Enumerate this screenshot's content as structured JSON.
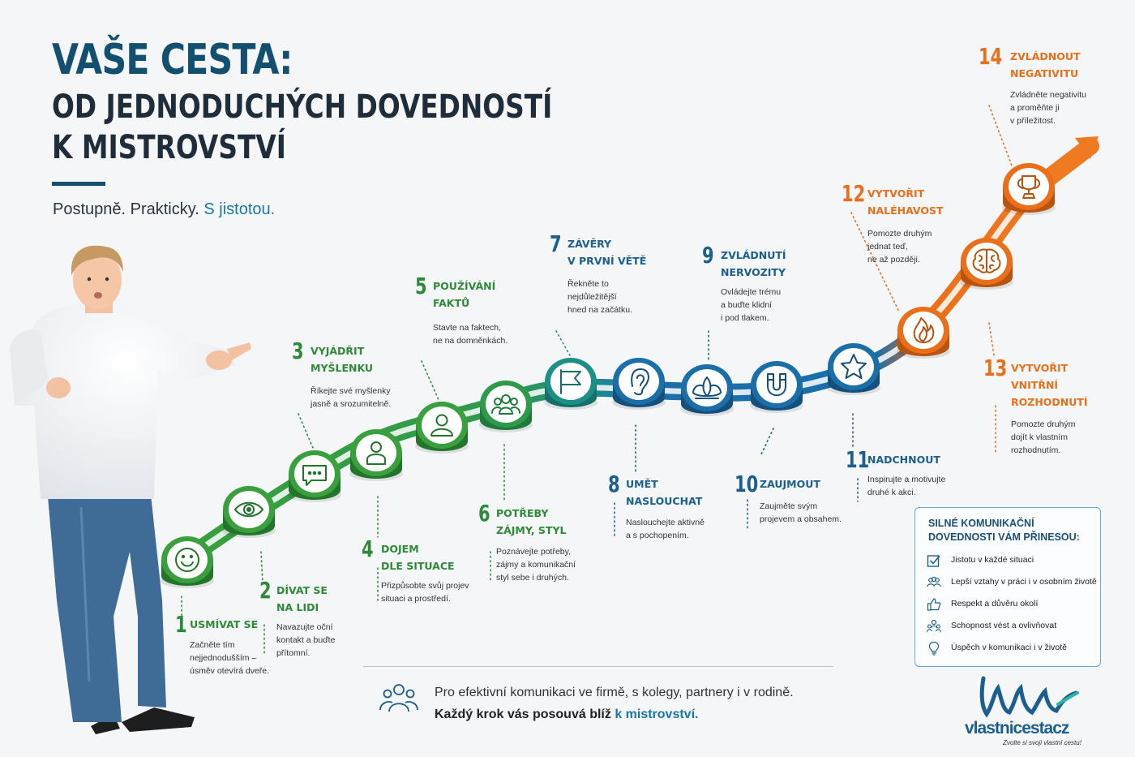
{
  "title": {
    "line1": "VAŠE CESTA:",
    "line2": "OD JEDNODUCHÝCH DOVEDNOSTÍ",
    "line3": "K MISTROVSTVÍ"
  },
  "tagline": {
    "plain": "Postupně. Prakticky.",
    "accent": "S jistotou."
  },
  "colors": {
    "green": "#2f8a38",
    "teal": "#1e8f86",
    "blue": "#1b5f8e",
    "orange": "#ea6f1a",
    "navy": "#13506f"
  },
  "steps": [
    {
      "num": "1",
      "title": [
        "USMÍVAT SE"
      ],
      "desc": [
        "Začněte tím",
        "nejjednodušším –",
        "úsměv otevírá dveře."
      ],
      "icon": "smile-icon"
    },
    {
      "num": "2",
      "title": [
        "DÍVAT SE",
        "NA LIDI"
      ],
      "desc": [
        "Navazujte oční",
        "kontakt a buďte",
        "přítomní."
      ],
      "icon": "eye-icon"
    },
    {
      "num": "3",
      "title": [
        "VYJÁDŘIT",
        "MYŠLENKU"
      ],
      "desc": [
        "Říkejte své myšlenky",
        "jasně a srozumitelně."
      ],
      "icon": "chat-bubble-icon"
    },
    {
      "num": "4",
      "title": [
        "DOJEM",
        "DLE SITUACE"
      ],
      "desc": [
        "Přizpůsobte svůj projev",
        "situaci a prostředí."
      ],
      "icon": "person-icon"
    },
    {
      "num": "5",
      "title": [
        "POUŽÍVÁNÍ",
        "FAKTŮ"
      ],
      "desc": [
        "Stavte na faktech,",
        "ne na domněnkách."
      ],
      "icon": "person-outline-icon"
    },
    {
      "num": "6",
      "title": [
        "POTŘEBY",
        "ZÁJMY, STYL"
      ],
      "desc": [
        "Poznávejte potřeby,",
        "zájmy a komunikační",
        "styl sebe i druhých."
      ],
      "icon": "group-icon"
    },
    {
      "num": "7",
      "title": [
        "ZÁVĚRY",
        "V PRVNÍ VĚTĚ"
      ],
      "desc": [
        "Řekněte to",
        "nejdůležitější",
        "hned na začátku."
      ],
      "icon": "flag-icon"
    },
    {
      "num": "8",
      "title": [
        "UMĚT",
        "NASLOUCHAT"
      ],
      "desc": [
        "Naslouchejte aktivně",
        "a s pochopením."
      ],
      "icon": "ear-icon"
    },
    {
      "num": "9",
      "title": [
        "ZVLÁDNUTÍ",
        "NERVOZITY"
      ],
      "desc": [
        "Ovládejte trému",
        "a buďte klidní",
        "i pod tlakem."
      ],
      "icon": "lotus-icon"
    },
    {
      "num": "10",
      "title": [
        "ZAUJMOUT"
      ],
      "desc": [
        "Zaujměte svým",
        "projevem a obsahem."
      ],
      "icon": "magnet-icon"
    },
    {
      "num": "11",
      "title": [
        "NADCHNOUT"
      ],
      "desc": [
        "Inspirujte a motivujte",
        "druhé k akci."
      ],
      "icon": "star-icon"
    },
    {
      "num": "12",
      "title": [
        "VYTVOŘIT",
        "NALÉHAVOST"
      ],
      "desc": [
        "Pomozte druhým",
        "jednat teď,",
        "ne až později."
      ],
      "icon": "flame-icon"
    },
    {
      "num": "13",
      "title": [
        "VYTVOŘIT",
        "VNITŘNÍ",
        "ROZHODNUTÍ"
      ],
      "desc": [
        "Pomozte druhým",
        "dojít k vlastním",
        "rozhodnutím."
      ],
      "icon": "brain-icon"
    },
    {
      "num": "14",
      "title": [
        "ZVLÁDNOUT",
        "NEGATIVITU"
      ],
      "desc": [
        "Zvládněte negativitu",
        "a proměňte ji",
        "v příležitost."
      ],
      "icon": "trophy-icon"
    }
  ],
  "benefits": {
    "title": [
      "SILNÉ KOMUNIKAČNÍ",
      "DOVEDNOSTI VÁM PŘINESOU:"
    ],
    "items": [
      {
        "text": "Jistotu v každé situaci",
        "icon": "checkbox-icon"
      },
      {
        "text": "Lepší vztahy v práci i v osobním životě",
        "icon": "people-icon"
      },
      {
        "text": "Respekt a důvěru okolí",
        "icon": "thumbs-up-icon"
      },
      {
        "text": "Schopnost vést a ovlivňovat",
        "icon": "leader-icon"
      },
      {
        "text": "Úspěch v komunikaci i v životě",
        "icon": "lightbulb-icon"
      }
    ]
  },
  "footer": {
    "line1": "Pro efektivní komunikaci ve firmě, s kolegy, partnery i v rodině.",
    "line2_plain": "Každý krok vás posouvá blíž",
    "line2_accent": "k mistrovství."
  },
  "logo": {
    "name": "vlastnicestacz",
    "slogan": "Zvolte si svoji vlastní cestu!"
  }
}
